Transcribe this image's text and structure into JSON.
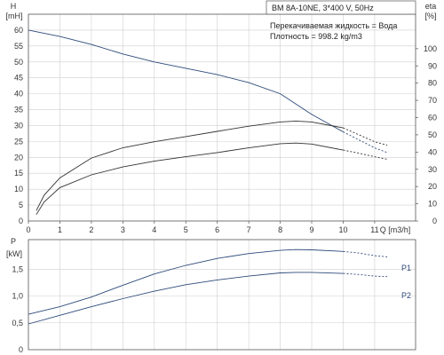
{
  "chart_data": [
    {
      "type": "line",
      "header_box": "BM 8A-10NE, 3*400 V, 50Hz",
      "notes": [
        "Перекачиваемая жидкость = Вода",
        "Плотность = 998.2 kg/m3"
      ],
      "xlabel": "Q [m3/h]",
      "ylabel_left": [
        "H",
        "[mH]"
      ],
      "ylabel_right": [
        "eta",
        "[%]"
      ],
      "x_ticks": [
        0,
        1,
        2,
        3,
        4,
        5,
        6,
        7,
        8,
        9,
        10,
        11
      ],
      "y_left_ticks": [
        0,
        5,
        10,
        15,
        20,
        25,
        30,
        35,
        40,
        45,
        50,
        55,
        60
      ],
      "y_right_ticks": [
        0,
        10,
        20,
        30,
        40,
        50,
        60,
        70,
        80,
        90,
        100
      ],
      "xlim": [
        0,
        12.3
      ],
      "ylim_left": [
        0,
        65
      ],
      "ylim_right": [
        0,
        120
      ],
      "grid": true,
      "series": [
        {
          "axis": "left",
          "x": [
            0,
            1,
            2,
            3,
            4,
            5,
            6,
            7,
            8,
            9,
            10
          ],
          "y": [
            60,
            58,
            55.5,
            52.5,
            50,
            48,
            46,
            43.5,
            40,
            33.5,
            28
          ],
          "dashed_x": [
            10,
            10.5,
            11,
            11.4
          ],
          "dashed_y": [
            28,
            25.5,
            23,
            21.5
          ],
          "color": "#2e4a7a"
        },
        {
          "axis": "right",
          "x": [
            0.25,
            0.5,
            1,
            2,
            3,
            4,
            5,
            6,
            7,
            8,
            8.5,
            9,
            10
          ],
          "y": [
            6,
            15,
            25,
            36.5,
            42.5,
            46,
            49,
            52,
            55,
            57.5,
            58,
            57.5,
            54
          ],
          "dashed_x": [
            10,
            10.5,
            11,
            11.4
          ],
          "dashed_y": [
            54,
            50,
            46,
            44
          ],
          "color": "#333333"
        },
        {
          "axis": "left",
          "x": [
            0.25,
            0.5,
            1,
            2,
            3,
            4,
            5,
            6,
            7,
            8,
            8.5,
            9,
            10
          ],
          "y": [
            2,
            6,
            10.5,
            14.5,
            17,
            18.8,
            20.2,
            21.5,
            23,
            24.3,
            24.5,
            24.2,
            22.3
          ],
          "dashed_x": [
            10,
            10.5,
            11,
            11.4
          ],
          "dashed_y": [
            22.3,
            21.3,
            20.2,
            19.4
          ],
          "color": "#333333"
        }
      ]
    },
    {
      "type": "line",
      "xlabel": "",
      "ylabel_left": [
        "P",
        "[kW]"
      ],
      "y_left_ticks": [
        "0",
        "0,5",
        "1,0",
        "1,5"
      ],
      "y_left_values": [
        0,
        0.5,
        1.0,
        1.5
      ],
      "xlim": [
        0,
        12.3
      ],
      "ylim_left": [
        0,
        2.05
      ],
      "grid": true,
      "series": [
        {
          "name": "P1",
          "x": [
            0,
            1,
            2,
            3,
            4,
            5,
            6,
            7,
            8,
            8.5,
            9,
            10
          ],
          "y": [
            0.66,
            0.8,
            0.98,
            1.2,
            1.41,
            1.57,
            1.7,
            1.79,
            1.85,
            1.865,
            1.86,
            1.83
          ],
          "dashed_x": [
            10,
            10.5,
            11,
            11.4
          ],
          "dashed_y": [
            1.83,
            1.8,
            1.75,
            1.73
          ],
          "color": "#2e4a7a"
        },
        {
          "name": "P2",
          "x": [
            0,
            1,
            2,
            3,
            4,
            5,
            6,
            7,
            8,
            8.5,
            9,
            10
          ],
          "y": [
            0.48,
            0.64,
            0.8,
            0.95,
            1.09,
            1.21,
            1.3,
            1.37,
            1.43,
            1.44,
            1.44,
            1.42
          ],
          "dashed_x": [
            10,
            10.5,
            11,
            11.4
          ],
          "dashed_y": [
            1.42,
            1.4,
            1.37,
            1.36
          ],
          "color": "#2e4a7a"
        }
      ]
    }
  ]
}
